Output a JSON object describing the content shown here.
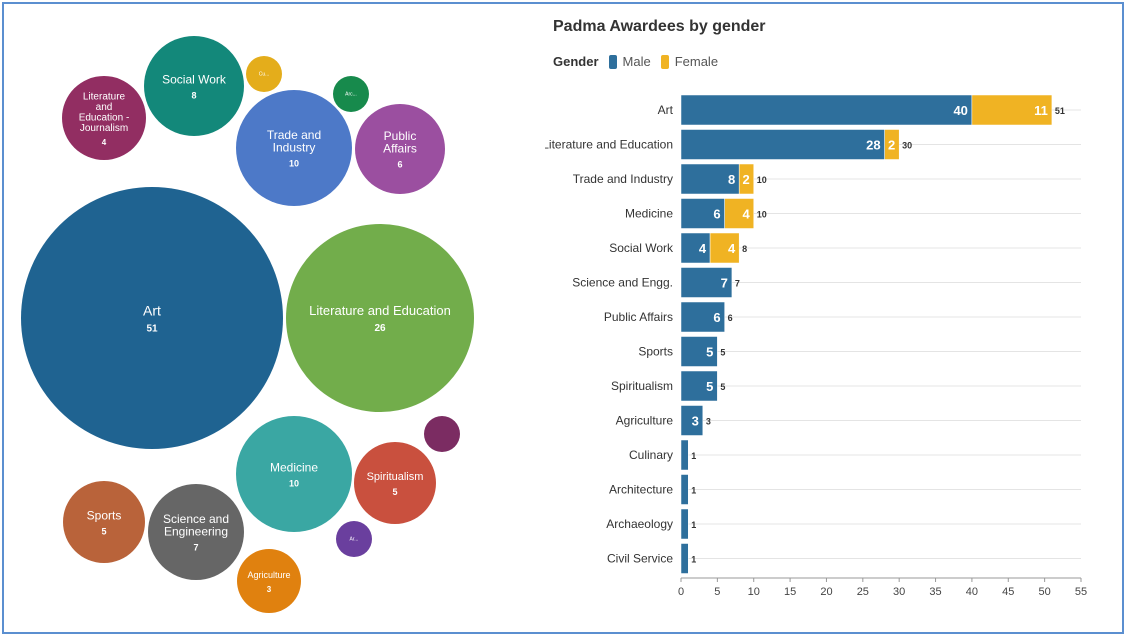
{
  "chart_data": [
    {
      "type": "bubble",
      "bubbles": [
        {
          "label": "Art",
          "value": "51",
          "color": "#1f6391"
        },
        {
          "label": "Literature and Education",
          "value": "26",
          "color": "#72ad4b"
        },
        {
          "label": "Trade and Industry",
          "value": "10",
          "color": "#4d79c8"
        },
        {
          "label": "Medicine",
          "value": "10",
          "color": "#3aa7a3"
        },
        {
          "label": "Social Work",
          "value": "8",
          "color": "#13887a"
        },
        {
          "label": "Science and Engineering",
          "value": "7",
          "color": "#666666"
        },
        {
          "label": "Public Affairs",
          "value": "6",
          "color": "#9b4fa0"
        },
        {
          "label": "Sports",
          "value": "5",
          "color": "#b9633a"
        },
        {
          "label": "Spiritualism",
          "value": "5",
          "color": "#c9503e"
        },
        {
          "label": "Literature and Education - Journalism",
          "value": "4",
          "color": "#922e62"
        },
        {
          "label": "Agriculture",
          "value": "3",
          "color": "#e0810f"
        },
        {
          "label": "Cu...",
          "value": "",
          "color": "#e4ad1b"
        },
        {
          "label": "Arc...",
          "value": "",
          "color": "#178a4c"
        },
        {
          "label": "Ar...",
          "value": "",
          "color": "#6a3f9e"
        },
        {
          "label": "",
          "value": "",
          "color": "#7b2c62"
        }
      ]
    },
    {
      "type": "bar",
      "orientation": "horizontal",
      "stacked": true,
      "title": "Padma Awardees by gender",
      "legend_title": "Gender",
      "categories": [
        "Art",
        "Literature and Education",
        "Trade and Industry",
        "Medicine",
        "Social Work",
        "Science and Engg.",
        "Public Affairs",
        "Sports",
        "Spiritualism",
        "Agriculture",
        "Culinary",
        "Architecture",
        "Archaeology",
        "Civil Service"
      ],
      "series": [
        {
          "name": "Male",
          "color": "#2e6f9c",
          "values": [
            40,
            28,
            8,
            6,
            4,
            7,
            6,
            5,
            5,
            3,
            1,
            1,
            1,
            1
          ]
        },
        {
          "name": "Female",
          "color": "#f0b323",
          "values": [
            11,
            2,
            2,
            4,
            4,
            0,
            0,
            0,
            0,
            0,
            0,
            0,
            0,
            0
          ]
        }
      ],
      "totals": [
        51,
        30,
        10,
        10,
        8,
        7,
        6,
        5,
        5,
        3,
        1,
        1,
        1,
        1
      ],
      "xlim": [
        0,
        55
      ],
      "xticks": [
        0,
        5,
        10,
        15,
        20,
        25,
        30,
        35,
        40,
        45,
        50,
        55
      ],
      "grid": true,
      "legend_position": "top-left"
    }
  ]
}
